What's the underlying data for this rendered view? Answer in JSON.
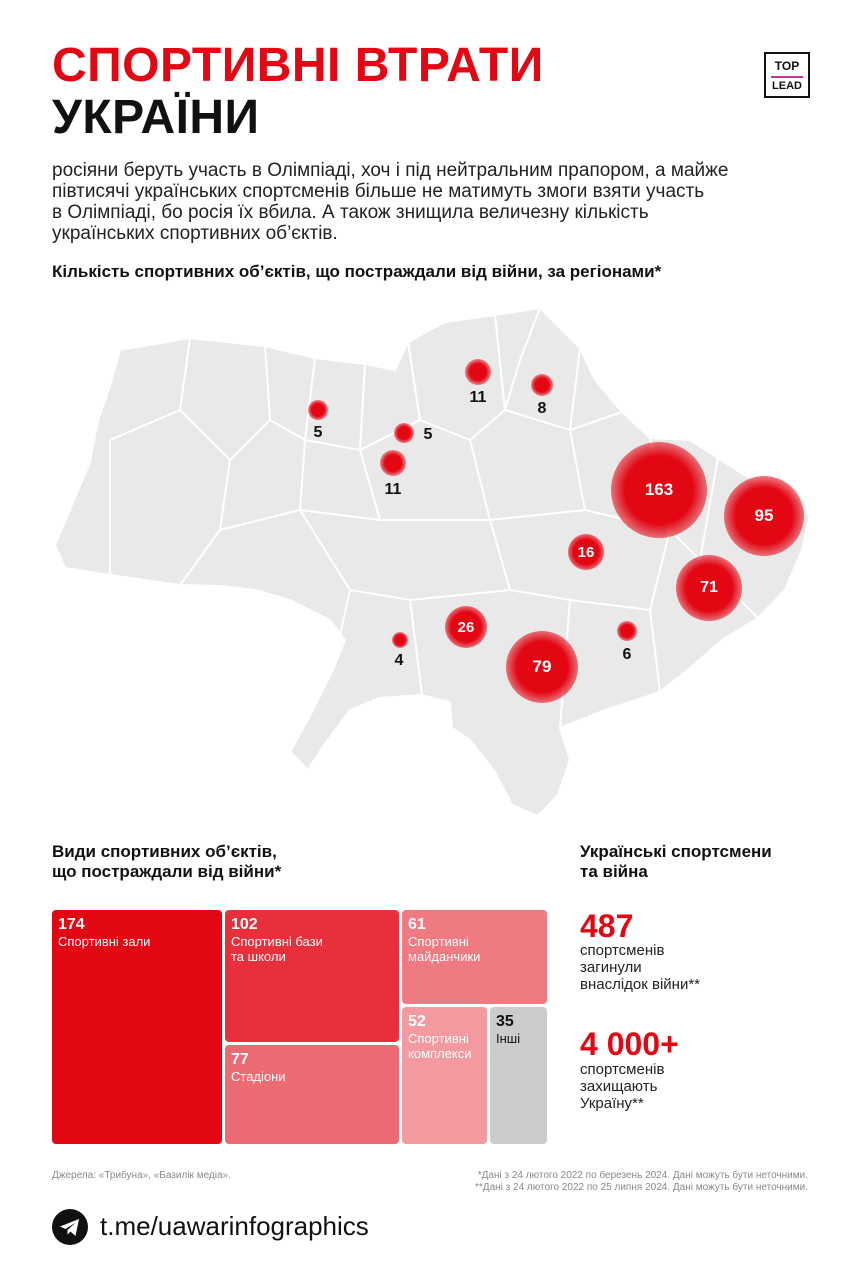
{
  "header": {
    "title_line1": "СПОРТИВНІ ВТРАТИ",
    "title_line2": "УКРАЇНИ",
    "logo_top": "TOP",
    "logo_bottom": "LEAD"
  },
  "intro": {
    "lines": [
      "росіяни беруть участь в Олімпіаді, хоч і під нейтральним прапором, а майже",
      "півтисячі українських спортсменів більше не матимуть змоги взяти участь",
      "в Олімпіаді, бо росія їх вбила. А також знищила величезну кількість",
      "українських спортивних об’єктів."
    ]
  },
  "map": {
    "title": "Кількість спортивних об’єктів, що постраждали від війни, за регіонами*",
    "markers": [
      {
        "value": "5"
      },
      {
        "value": "5"
      },
      {
        "value": "11"
      },
      {
        "value": "11"
      },
      {
        "value": "8"
      },
      {
        "value": "163"
      },
      {
        "value": "95"
      },
      {
        "value": "16"
      },
      {
        "value": "71"
      },
      {
        "value": "26"
      },
      {
        "value": "79"
      },
      {
        "value": "4"
      },
      {
        "value": "6"
      }
    ]
  },
  "facilities": {
    "title_line1": "Види спортивних об’єктів,",
    "title_line2": "що постраждали від війни*",
    "items": [
      {
        "value": "174",
        "label_line1": "Спортивні зали",
        "label_line2": "",
        "color": "#e30613"
      },
      {
        "value": "102",
        "label_line1": "Спортивні бази",
        "label_line2": "та школи",
        "color": "#e8303d"
      },
      {
        "value": "61",
        "label_line1": "Спортивні",
        "label_line2": "майданчики",
        "color": "#ef7a82"
      },
      {
        "value": "77",
        "label_line1": "Стадіони",
        "label_line2": "",
        "color": "#ec6a71"
      },
      {
        "value": "52",
        "label_line1": "Спортивні",
        "label_line2": "комплекси",
        "color": "#f29aa0"
      },
      {
        "value": "35",
        "label_line1": "Інші",
        "label_line2": "",
        "color": "#cccccc"
      }
    ]
  },
  "athletes": {
    "title_line1": "Українські спортсмени",
    "title_line2": "та війна",
    "stat1_value": "487",
    "stat1_lines": [
      "спортсменів",
      "загинули",
      "внаслідок війни**"
    ],
    "stat2_value": "4 000+",
    "stat2_lines": [
      "спортсменів",
      "захищають",
      "Україну**"
    ]
  },
  "footer": {
    "sources": "Джерела: «Трибуна», «Базилік медіа».",
    "note1": "*Дані з 24 лютого 2022 по березень 2024. Дані можуть бути неточними.",
    "note2": "**Дані з 24 лютого 2022 по 25 липня 2024. Дані можуть бути неточними.",
    "telegram_link": "t.me/uawarinfographics"
  }
}
